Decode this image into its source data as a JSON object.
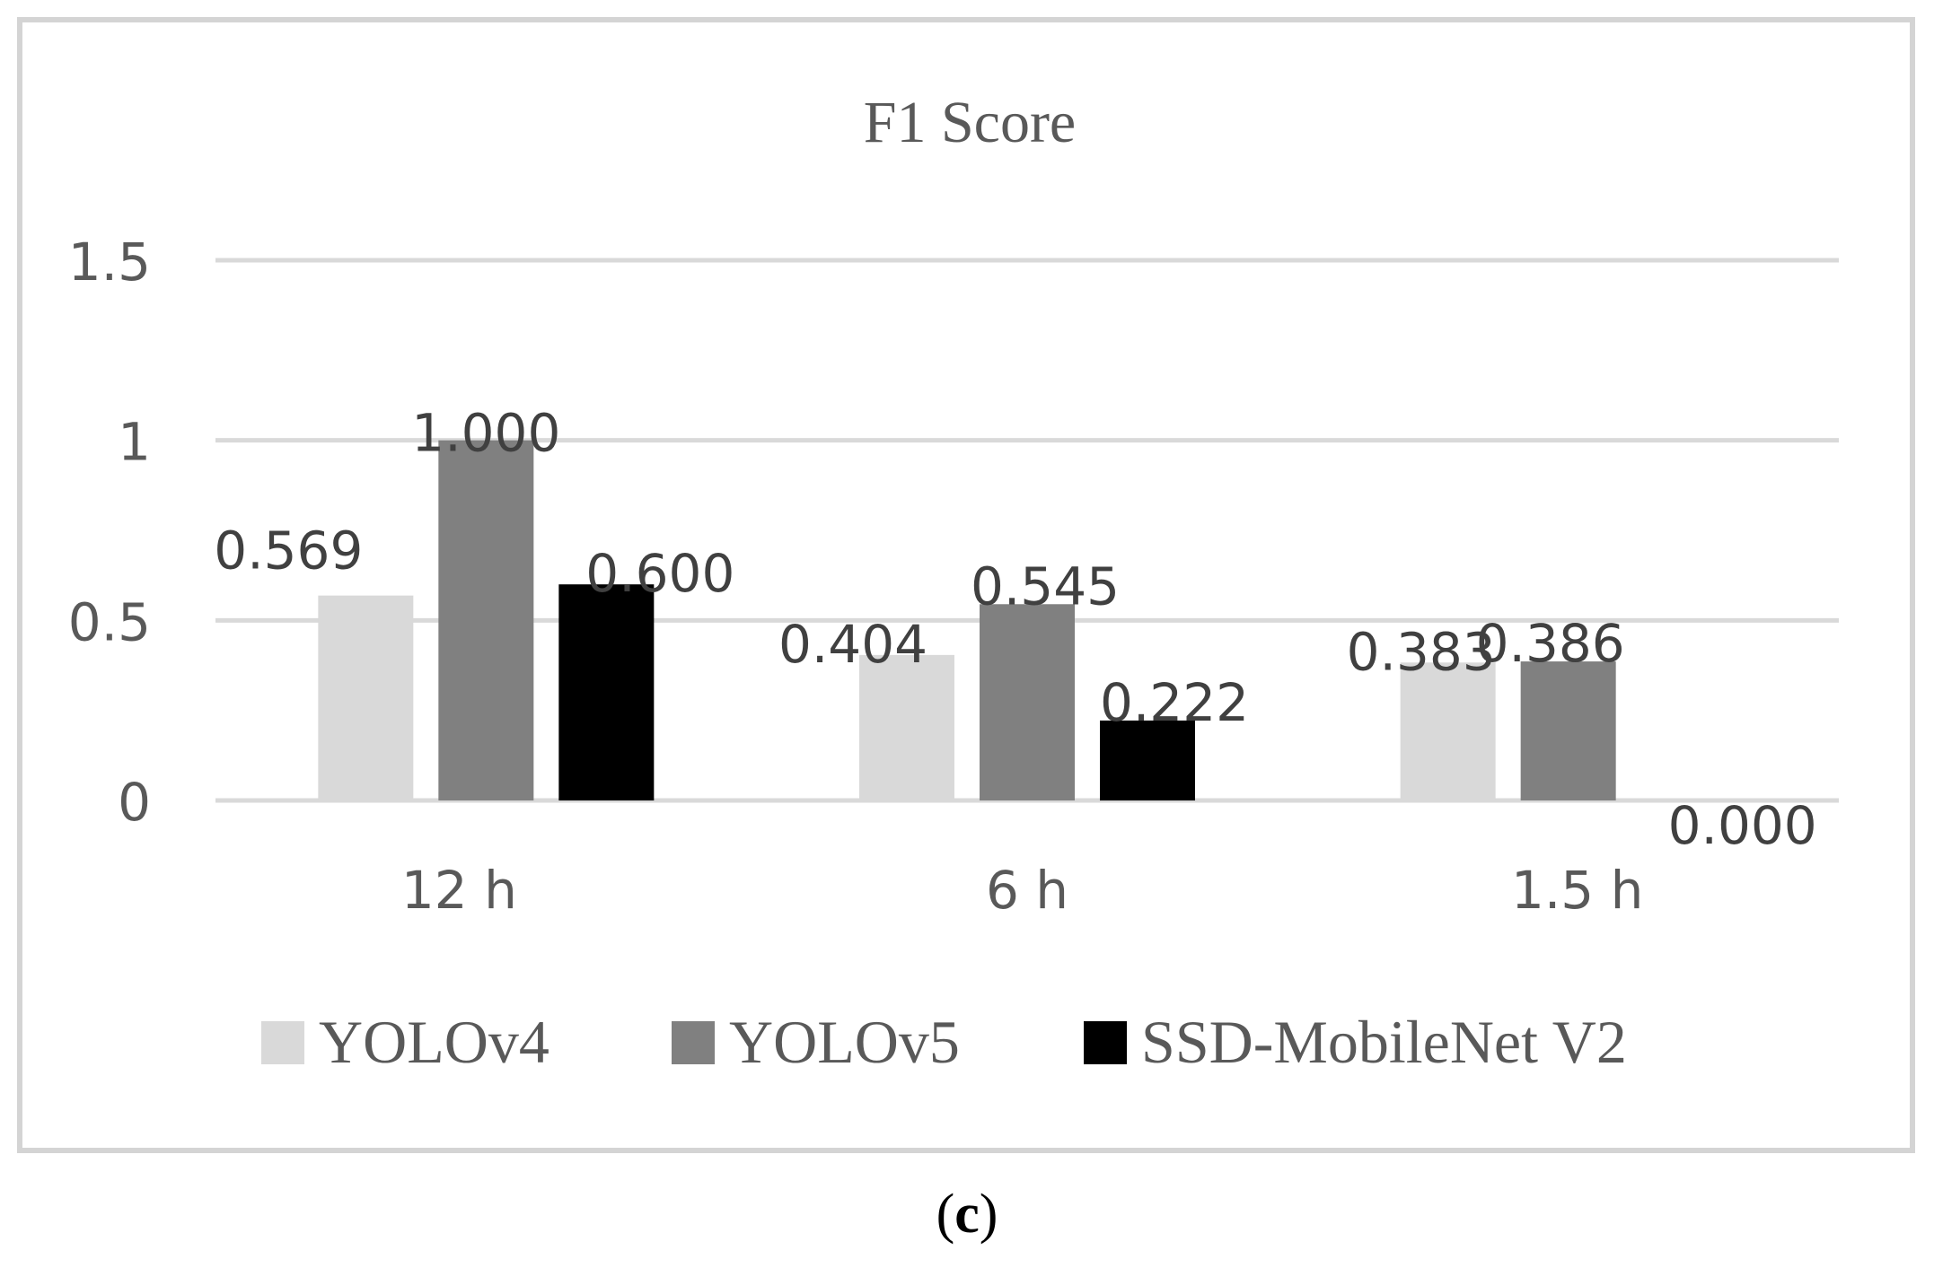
{
  "chart_data": {
    "type": "bar",
    "title": "F1 Score",
    "categories": [
      "12 h",
      "6 h",
      "1.5 h"
    ],
    "series": [
      {
        "name": "YOLOv4",
        "values": [
          0.569,
          0.404,
          0.383
        ],
        "labels": [
          "0.569",
          "0.404",
          "0.383"
        ],
        "color": "#d9d9d9"
      },
      {
        "name": "YOLOv5",
        "values": [
          1.0,
          0.545,
          0.386
        ],
        "labels": [
          "1.000",
          "0.545",
          "0.386"
        ],
        "color": "#808080"
      },
      {
        "name": "SSD-MobileNet V2",
        "values": [
          0.6,
          0.222,
          0.0
        ],
        "labels": [
          "0.600",
          "0.222",
          "0.000"
        ],
        "color": "#000000"
      }
    ],
    "yticks": [
      0,
      0.5,
      1,
      1.5
    ],
    "ytick_labels": [
      "0",
      "0.5",
      "1",
      "1.5"
    ],
    "ylim": [
      0,
      1.5
    ],
    "xlabel": "",
    "ylabel": "",
    "grid": true,
    "legend_position": "bottom"
  },
  "caption": {
    "open": "(",
    "letter": "c",
    "close": ")"
  },
  "colors": {
    "gridline": "#d9d9d9",
    "text": "#595959",
    "frame": "#d4d4d4"
  }
}
